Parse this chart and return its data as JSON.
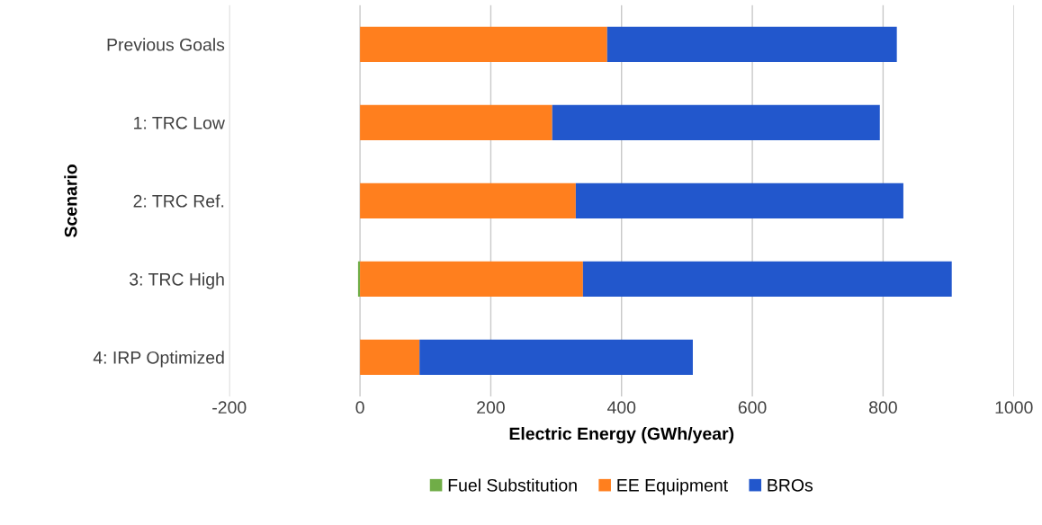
{
  "chart_data": {
    "type": "bar",
    "orientation": "horizontal",
    "stacked": true,
    "categories": [
      "Previous Goals",
      "1: TRC Low",
      "2: TRC Ref.",
      "3: TRC High",
      "4: IRP Optimized"
    ],
    "series": [
      {
        "name": "Fuel Substitution",
        "color": "#70ad47",
        "values": [
          0,
          0,
          0,
          -3,
          0
        ]
      },
      {
        "name": "EE Equipment",
        "color": "#ff7f1e",
        "values": [
          378,
          294,
          330,
          341,
          91
        ]
      },
      {
        "name": "BROs",
        "color": "#2257cc",
        "values": [
          443,
          501,
          501,
          564,
          418
        ]
      }
    ],
    "xlabel": "Electric Energy (GWh/year)",
    "ylabel": "Scenario",
    "xlim": [
      -200,
      1000
    ],
    "xticks": [
      -200,
      0,
      200,
      400,
      600,
      800,
      1000
    ],
    "grid": "x",
    "legend": "bottom"
  }
}
